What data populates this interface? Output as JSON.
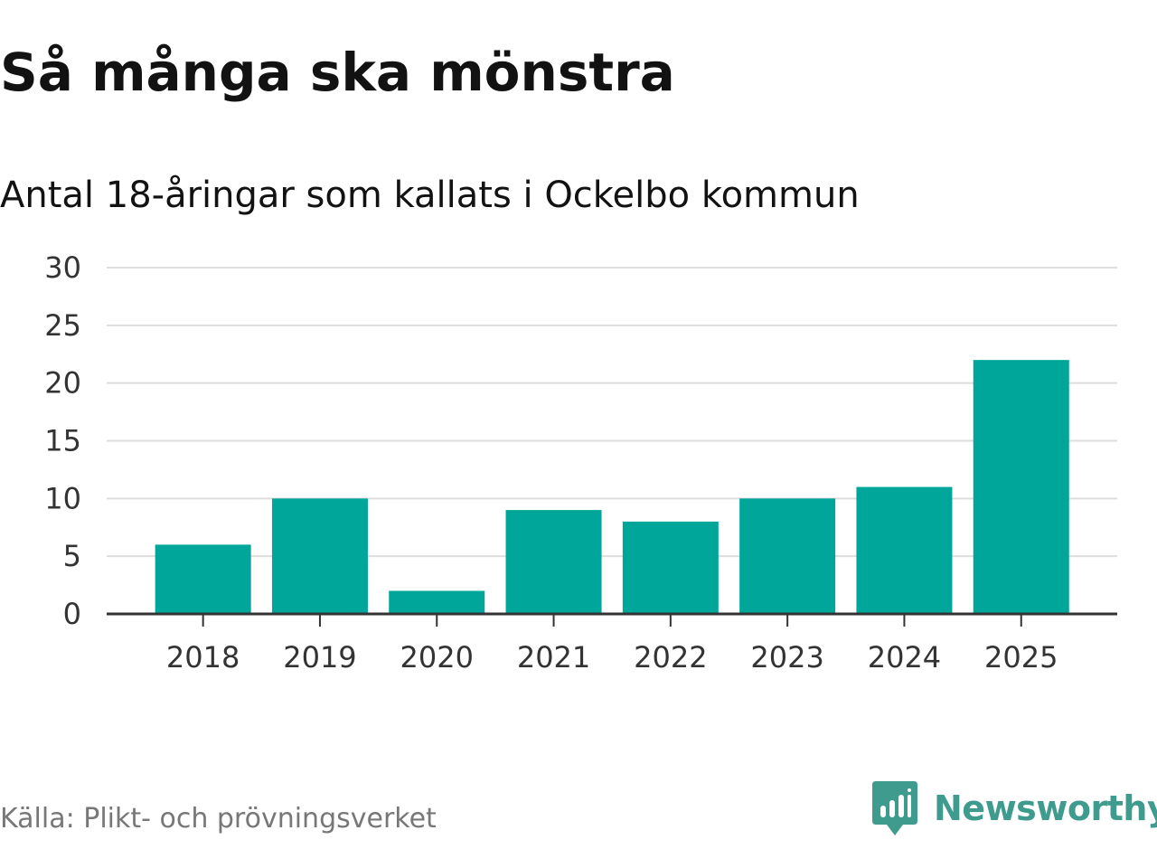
{
  "title": "Så många ska mönstra",
  "subtitle": "Antal 18-åringar som kallats i Ockelbo kommun",
  "source": "Källa: Plikt- och prövningsverket",
  "logo": {
    "text": "Newsworthy",
    "icon": "newsworthy-bar-chart-icon",
    "color": "#3e9b8d"
  },
  "colors": {
    "bar": "#00a69a",
    "grid": "#dddddd",
    "axis": "#333333"
  },
  "chart_data": {
    "type": "bar",
    "categories": [
      "2018",
      "2019",
      "2020",
      "2021",
      "2022",
      "2023",
      "2024",
      "2025"
    ],
    "values": [
      6,
      10,
      2,
      9,
      8,
      10,
      11,
      22
    ],
    "title": "Så många ska mönstra",
    "subtitle": "Antal 18-åringar som kallats i Ockelbo kommun",
    "xlabel": "",
    "ylabel": "",
    "ylim": [
      0,
      30
    ],
    "yticks": [
      0,
      5,
      10,
      15,
      20,
      25,
      30
    ],
    "grid": true,
    "legend": "none"
  }
}
